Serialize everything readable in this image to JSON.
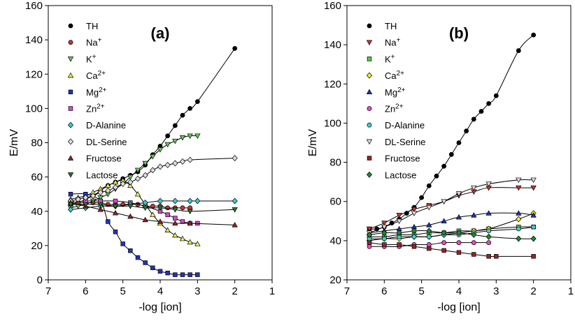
{
  "chart_data": [
    {
      "type": "scatter",
      "panel_label": "(a)",
      "xlabel": "-log [ion]",
      "ylabel": "E/mV",
      "xlim": [
        7,
        1
      ],
      "ylim": [
        0,
        160
      ],
      "xticks": [
        7,
        6,
        5,
        4,
        3,
        2,
        1
      ],
      "yticks": [
        0,
        20,
        40,
        60,
        80,
        100,
        120,
        140,
        160
      ],
      "legend_position": "top-left",
      "series": [
        {
          "name": "TH",
          "sup": "",
          "marker": "circle",
          "color": "#000000",
          "x": [
            6.4,
            6.2,
            6.0,
            5.8,
            5.6,
            5.4,
            5.2,
            5.0,
            4.8,
            4.6,
            4.4,
            4.2,
            4.0,
            3.8,
            3.6,
            3.4,
            3.2,
            3.0,
            2.0
          ],
          "y": [
            44,
            45,
            47,
            49,
            52,
            55,
            57,
            59,
            61,
            63,
            67,
            73,
            78,
            84,
            90,
            96,
            100,
            104,
            135
          ]
        },
        {
          "name": "Na",
          "sup": "+",
          "marker": "circle",
          "color": "#cc3333",
          "x": [
            6.4,
            6.2,
            6.0,
            5.8,
            5.6,
            5.4,
            5.2,
            5.0,
            4.8,
            4.6,
            4.4,
            4.2,
            4.0,
            3.8,
            3.6,
            3.4,
            3.2
          ],
          "y": [
            46,
            45,
            45,
            45,
            45,
            44,
            44,
            44,
            44,
            44,
            43,
            43,
            43,
            42,
            42,
            42,
            42
          ]
        },
        {
          "name": "K",
          "sup": "+",
          "marker": "triangle-down",
          "color": "#66cc55",
          "x": [
            6.4,
            6.2,
            6.0,
            5.8,
            5.6,
            5.4,
            5.2,
            5.0,
            4.8,
            4.6,
            4.4,
            4.2,
            4.0,
            3.8,
            3.6,
            3.4,
            3.2,
            3.0
          ],
          "y": [
            42,
            43,
            44,
            46,
            48,
            50,
            53,
            56,
            60,
            64,
            68,
            72,
            76,
            79,
            81,
            83,
            84,
            84
          ]
        },
        {
          "name": "Ca",
          "sup": "2+",
          "marker": "triangle-up",
          "color": "#eeee44",
          "x": [
            6.4,
            6.2,
            6.0,
            5.8,
            5.6,
            5.4,
            5.2,
            5.0,
            4.8,
            4.6,
            4.4,
            4.2,
            4.0,
            3.8,
            3.6,
            3.4,
            3.2,
            3.0
          ],
          "y": [
            47,
            48,
            49,
            51,
            53,
            55,
            57,
            58,
            55,
            50,
            44,
            38,
            33,
            29,
            26,
            24,
            22,
            21
          ]
        },
        {
          "name": "Mg",
          "sup": "2+",
          "marker": "square",
          "color": "#2233bb",
          "x": [
            6.4,
            6.0,
            5.6,
            5.4,
            5.2,
            5.0,
            4.8,
            4.6,
            4.4,
            4.2,
            4.0,
            3.8,
            3.6,
            3.4,
            3.2,
            3.0
          ],
          "y": [
            50,
            50,
            46,
            34,
            28,
            21,
            17,
            13,
            10,
            7,
            5,
            4,
            3,
            3,
            3,
            3
          ]
        },
        {
          "name": "Zn",
          "sup": "2+",
          "marker": "square",
          "color": "#dd44cc",
          "x": [
            6.4,
            6.0,
            5.6,
            5.2,
            4.8,
            4.4,
            4.0,
            3.8,
            3.6,
            3.4,
            3.2,
            3.0
          ],
          "y": [
            45,
            46,
            46,
            46,
            45,
            43,
            40,
            38,
            36,
            34,
            33,
            33
          ]
        },
        {
          "name": "D-Alanine",
          "sup": "",
          "marker": "diamond",
          "color": "#33cccc",
          "x": [
            6.4,
            6.0,
            5.6,
            5.2,
            4.8,
            4.4,
            4.0,
            3.6,
            3.2,
            3.0,
            2.0
          ],
          "y": [
            41,
            42,
            43,
            43,
            44,
            45,
            46,
            46,
            46,
            46,
            46
          ]
        },
        {
          "name": "DL-Serine",
          "sup": "",
          "marker": "diamond",
          "color": "#dddddd",
          "x": [
            6.4,
            6.2,
            6.0,
            5.8,
            5.6,
            5.4,
            5.2,
            5.0,
            4.8,
            4.6,
            4.4,
            4.2,
            4.0,
            3.8,
            3.6,
            3.4,
            3.2,
            2.0
          ],
          "y": [
            46,
            47,
            48,
            49,
            51,
            52,
            54,
            56,
            57,
            59,
            61,
            64,
            66,
            67,
            68,
            69,
            70,
            71
          ]
        },
        {
          "name": "Fructose",
          "sup": "",
          "marker": "triangle-up",
          "color": "#992222",
          "x": [
            6.4,
            6.0,
            5.6,
            5.2,
            4.8,
            4.4,
            4.0,
            3.6,
            3.2,
            2.0
          ],
          "y": [
            45,
            43,
            41,
            39,
            37,
            35,
            34,
            33,
            33,
            32
          ]
        },
        {
          "name": "Lactose",
          "sup": "",
          "marker": "triangle-down",
          "color": "#227733",
          "x": [
            6.4,
            6.0,
            5.6,
            5.2,
            4.8,
            4.4,
            4.0,
            3.6,
            3.2,
            2.0
          ],
          "y": [
            44,
            44,
            44,
            43,
            43,
            42,
            42,
            41,
            40,
            41
          ]
        }
      ]
    },
    {
      "type": "scatter",
      "panel_label": "(b)",
      "xlabel": "-log [ion]",
      "ylabel": "E/mV",
      "xlim": [
        7,
        1
      ],
      "ylim": [
        20,
        160
      ],
      "xticks": [
        7,
        6,
        5,
        4,
        3,
        2,
        1
      ],
      "yticks": [
        20,
        40,
        60,
        80,
        100,
        120,
        140,
        160
      ],
      "legend_position": "top-left",
      "series": [
        {
          "name": "TH",
          "sup": "",
          "marker": "circle",
          "color": "#000000",
          "x": [
            6.4,
            6.2,
            6.0,
            5.8,
            5.6,
            5.4,
            5.2,
            5.0,
            4.8,
            4.6,
            4.4,
            4.2,
            4.0,
            3.8,
            3.6,
            3.4,
            3.2,
            3.0,
            2.4,
            2.0
          ],
          "y": [
            46,
            46,
            47,
            49,
            51,
            54,
            57,
            62,
            68,
            73,
            78,
            84,
            90,
            96,
            102,
            106,
            110,
            114,
            137,
            145
          ]
        },
        {
          "name": "Na",
          "sup": "+",
          "marker": "triangle-down",
          "color": "#cc3333",
          "x": [
            6.4,
            6.0,
            5.6,
            5.2,
            4.8,
            4.4,
            4.0,
            3.6,
            3.2,
            2.4,
            2.0
          ],
          "y": [
            46,
            49,
            53,
            56,
            58,
            60,
            63,
            65,
            67,
            67,
            67
          ]
        },
        {
          "name": "K",
          "sup": "+",
          "marker": "square",
          "color": "#55cc44",
          "x": [
            6.4,
            6.0,
            5.6,
            5.2,
            4.8,
            4.4,
            4.0,
            3.6,
            3.2,
            2.4,
            2.0
          ],
          "y": [
            42,
            42,
            43,
            43,
            44,
            44,
            45,
            45,
            46,
            47,
            47
          ]
        },
        {
          "name": "Ca",
          "sup": "2+",
          "marker": "diamond",
          "color": "#eeee33",
          "x": [
            6.4,
            6.0,
            5.6,
            5.2,
            4.8,
            4.4,
            4.0,
            3.6,
            3.2,
            2.4,
            2.0
          ],
          "y": [
            40,
            41,
            41,
            42,
            42,
            43,
            44,
            45,
            46,
            51,
            54
          ]
        },
        {
          "name": "Mg",
          "sup": "2+",
          "marker": "triangle-up",
          "color": "#2233bb",
          "x": [
            6.4,
            6.0,
            5.6,
            5.2,
            4.8,
            4.4,
            4.0,
            3.6,
            3.2,
            2.4,
            2.0
          ],
          "y": [
            44,
            45,
            46,
            47,
            48,
            50,
            52,
            53,
            54,
            54,
            53
          ]
        },
        {
          "name": "Zn",
          "sup": "2+",
          "marker": "circle",
          "color": "#ee44cc",
          "x": [
            6.4,
            6.0,
            5.6,
            5.2,
            4.8,
            4.4,
            4.0,
            3.6,
            3.2
          ],
          "y": [
            37,
            37,
            37,
            38,
            38,
            39,
            39,
            39,
            39
          ]
        },
        {
          "name": "D-Alanine",
          "sup": "",
          "marker": "circle",
          "color": "#44cccc",
          "x": [
            6.4,
            6.0,
            5.6,
            5.2,
            4.8,
            4.4,
            4.0,
            3.6,
            3.2,
            2.4,
            2.0
          ],
          "y": [
            41,
            41,
            42,
            42,
            42,
            43,
            43,
            44,
            45,
            46,
            47
          ]
        },
        {
          "name": "DL-Serine",
          "sup": "",
          "marker": "triangle-down",
          "color": "#dddddd",
          "x": [
            6.4,
            6.0,
            5.6,
            5.2,
            4.8,
            4.4,
            4.0,
            3.6,
            3.2,
            2.4,
            2.0
          ],
          "y": [
            44,
            47,
            50,
            54,
            57,
            60,
            64,
            67,
            69,
            71,
            71
          ]
        },
        {
          "name": "Fructose",
          "sup": "",
          "marker": "square",
          "color": "#992222",
          "x": [
            6.4,
            6.0,
            5.6,
            5.2,
            4.8,
            4.4,
            4.0,
            3.6,
            3.2,
            3.0,
            2.0
          ],
          "y": [
            39,
            38,
            38,
            37,
            36,
            35,
            34,
            33,
            32,
            32,
            32
          ]
        },
        {
          "name": "Lactose",
          "sup": "",
          "marker": "diamond",
          "color": "#228833",
          "x": [
            6.4,
            6.0,
            5.6,
            5.2,
            4.8,
            4.4,
            4.0,
            3.6,
            3.2,
            2.4,
            2.0
          ],
          "y": [
            43,
            44,
            44,
            45,
            45,
            44,
            44,
            43,
            42,
            41,
            41
          ]
        }
      ]
    }
  ]
}
